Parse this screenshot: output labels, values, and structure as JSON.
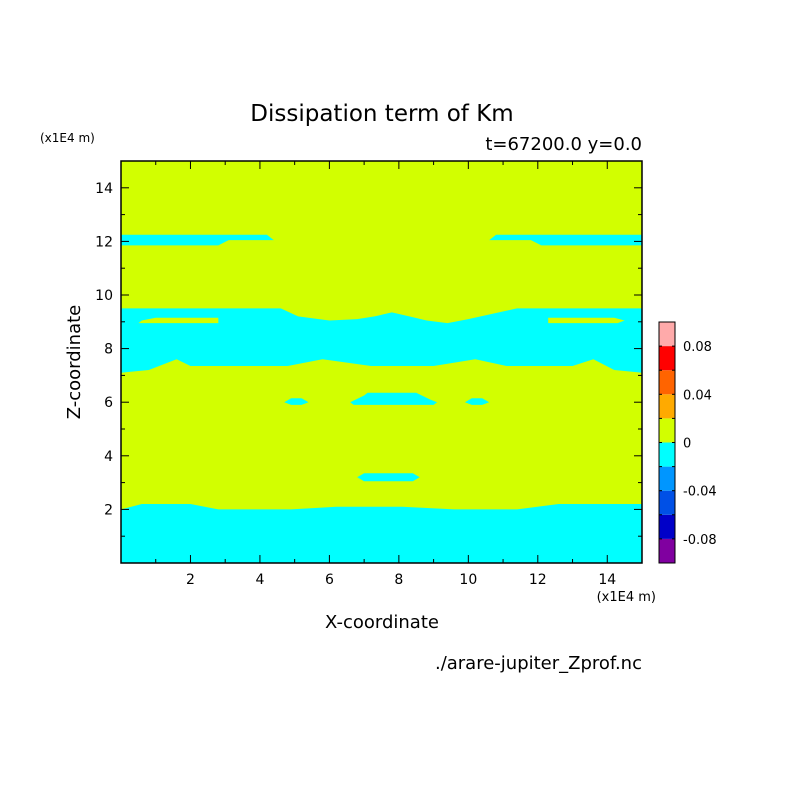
{
  "chart_data": {
    "type": "heatmap",
    "title": "Dissipation term of Km",
    "subtitle": "t=67200.0 y=0.0",
    "xlabel": "X-coordinate",
    "ylabel": "Z-coordinate",
    "x_unit": "(x1E4 m)",
    "y_unit": "(x1E4 m)",
    "source_file": "./arare-jupiter_Zprof.nc",
    "xlim": [
      0,
      15
    ],
    "ylim": [
      0,
      15
    ],
    "x_ticks": [
      2,
      4,
      6,
      8,
      10,
      12,
      14
    ],
    "y_ticks": [
      2,
      4,
      6,
      8,
      10,
      12,
      14
    ],
    "x_tick_labels": [
      "2",
      "4",
      "6",
      "8",
      "10",
      "12",
      "14"
    ],
    "y_tick_labels": [
      "2",
      "4",
      "6",
      "8",
      "10",
      "12",
      "14"
    ],
    "colorbar": {
      "levels": [
        -0.1,
        -0.08,
        -0.06,
        -0.04,
        -0.02,
        0,
        0.02,
        0.04,
        0.06,
        0.08,
        0.1
      ],
      "colors": [
        "#8000a0",
        "#0000c8",
        "#0050e6",
        "#0096ff",
        "#00ffff",
        "#d2ff00",
        "#ffaa00",
        "#ff6400",
        "#ff0000",
        "#ffaaaa"
      ],
      "tick_values": [
        -0.08,
        -0.04,
        0,
        0.04,
        0.08
      ],
      "tick_labels": [
        "-0.08",
        "-0.04",
        "0",
        "0.04",
        "0.08"
      ]
    },
    "background_value": 0.01,
    "regions": [
      {
        "class": "neg",
        "value": -0.01,
        "points": [
          [
            0,
            0
          ],
          [
            15,
            0
          ],
          [
            15,
            2.2
          ],
          [
            12.6,
            2.2
          ],
          [
            11.4,
            2.0
          ],
          [
            9.6,
            2.0
          ],
          [
            8.1,
            2.1
          ],
          [
            6.2,
            2.1
          ],
          [
            4.9,
            2.0
          ],
          [
            2.8,
            2.0
          ],
          [
            2.0,
            2.2
          ],
          [
            0.6,
            2.2
          ],
          [
            0,
            2.0
          ]
        ]
      },
      {
        "class": "neg",
        "value": -0.01,
        "points": [
          [
            0,
            11.85
          ],
          [
            2.8,
            11.85
          ],
          [
            3.1,
            12.05
          ],
          [
            4.4,
            12.05
          ],
          [
            4.2,
            12.25
          ],
          [
            0,
            12.25
          ]
        ]
      },
      {
        "class": "neg",
        "value": -0.01,
        "points": [
          [
            15,
            11.85
          ],
          [
            12.1,
            11.85
          ],
          [
            11.8,
            12.05
          ],
          [
            10.6,
            12.05
          ],
          [
            10.8,
            12.25
          ],
          [
            15,
            12.25
          ]
        ]
      },
      {
        "class": "neg",
        "value": -0.01,
        "points": [
          [
            0,
            7.1
          ],
          [
            0.8,
            7.2
          ],
          [
            1.6,
            7.6
          ],
          [
            2.0,
            7.35
          ],
          [
            4.8,
            7.35
          ],
          [
            5.8,
            7.6
          ],
          [
            7.2,
            7.35
          ],
          [
            9.0,
            7.35
          ],
          [
            10.2,
            7.6
          ],
          [
            11.1,
            7.35
          ],
          [
            13.0,
            7.35
          ],
          [
            13.6,
            7.6
          ],
          [
            14.2,
            7.2
          ],
          [
            15,
            7.1
          ],
          [
            15,
            9.5
          ],
          [
            11.4,
            9.5
          ],
          [
            10.0,
            9.1
          ],
          [
            9.4,
            8.95
          ],
          [
            8.8,
            9.05
          ],
          [
            8.3,
            9.2
          ],
          [
            7.8,
            9.35
          ],
          [
            7.3,
            9.2
          ],
          [
            6.8,
            9.1
          ],
          [
            6.0,
            9.05
          ],
          [
            5.1,
            9.2
          ],
          [
            4.6,
            9.5
          ],
          [
            0,
            9.5
          ]
        ]
      },
      {
        "class": "pos",
        "value": 0.01,
        "points": [
          [
            0.5,
            8.95
          ],
          [
            2.8,
            8.95
          ],
          [
            2.8,
            9.15
          ],
          [
            1.0,
            9.15
          ],
          [
            0.6,
            9.05
          ]
        ]
      },
      {
        "class": "pos",
        "value": 0.01,
        "points": [
          [
            12.3,
            8.95
          ],
          [
            14.3,
            8.95
          ],
          [
            14.5,
            9.05
          ],
          [
            14.2,
            9.15
          ],
          [
            12.3,
            9.15
          ]
        ]
      },
      {
        "class": "neg",
        "value": -0.01,
        "points": [
          [
            6.6,
            6.0
          ],
          [
            7.0,
            6.25
          ],
          [
            7.1,
            6.35
          ],
          [
            8.5,
            6.35
          ],
          [
            8.9,
            6.1
          ],
          [
            9.1,
            6.0
          ],
          [
            9.0,
            5.9
          ],
          [
            6.7,
            5.9
          ]
        ]
      },
      {
        "class": "neg",
        "value": -0.01,
        "points": [
          [
            4.7,
            6.0
          ],
          [
            4.9,
            6.15
          ],
          [
            5.2,
            6.15
          ],
          [
            5.4,
            6.0
          ],
          [
            5.2,
            5.9
          ],
          [
            4.9,
            5.9
          ]
        ]
      },
      {
        "class": "neg",
        "value": -0.01,
        "points": [
          [
            9.9,
            6.0
          ],
          [
            10.1,
            6.15
          ],
          [
            10.4,
            6.15
          ],
          [
            10.6,
            6.0
          ],
          [
            10.4,
            5.9
          ],
          [
            10.1,
            5.9
          ]
        ]
      },
      {
        "class": "neg",
        "value": -0.01,
        "points": [
          [
            6.8,
            3.2
          ],
          [
            7.0,
            3.35
          ],
          [
            8.4,
            3.35
          ],
          [
            8.6,
            3.2
          ],
          [
            8.4,
            3.05
          ],
          [
            7.0,
            3.05
          ]
        ]
      }
    ]
  }
}
